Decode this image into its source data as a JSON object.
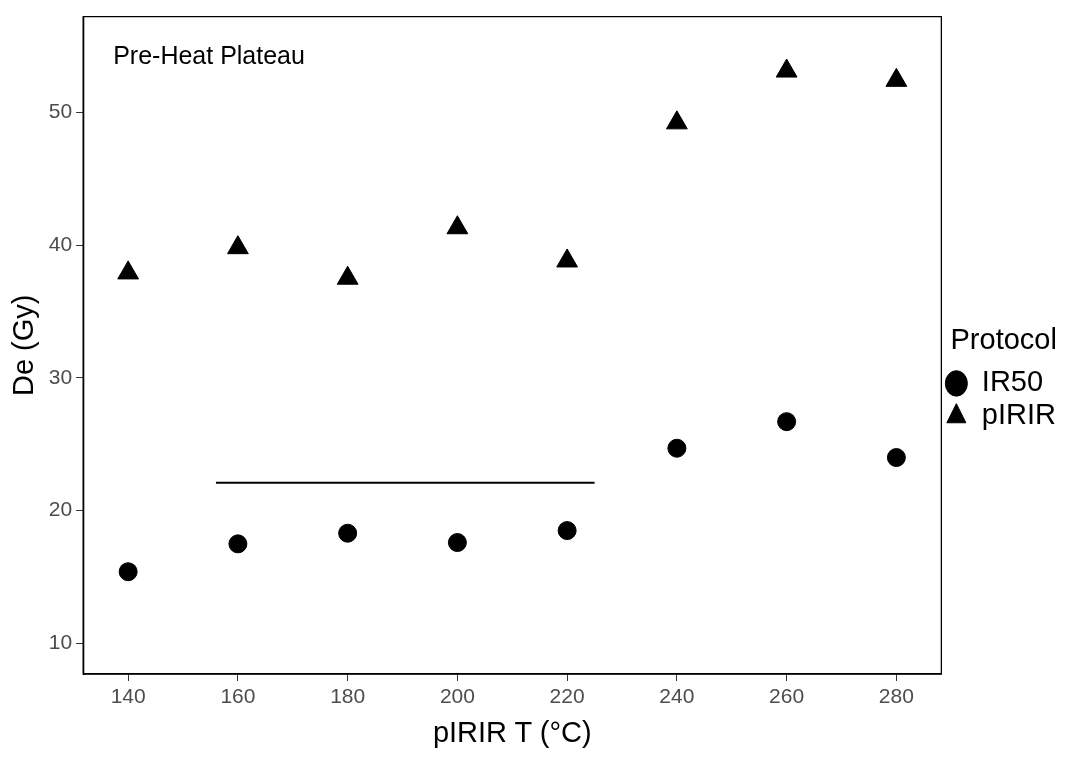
{
  "chart_data": {
    "type": "scatter",
    "xlabel": "pIRIR T (°C)",
    "ylabel": "De (Gy)",
    "legend_title": "Protocol",
    "legend": "right",
    "grid": false,
    "annotations": [
      "Pre-Heat Plateau"
    ],
    "x": [
      140,
      160,
      180,
      200,
      220,
      240,
      260,
      280
    ],
    "xlim": [
      131.8,
      288.2
    ],
    "xticks": [
      140,
      160,
      180,
      200,
      220,
      240,
      260,
      280
    ],
    "ylim": [
      7.7,
      57.2
    ],
    "yticks": [
      10,
      20,
      30,
      40,
      50
    ],
    "series": [
      {
        "name": "IR50",
        "color": "#000000",
        "marker": "circle",
        "values": [
          15.4,
          17.5,
          18.3,
          17.6,
          18.5,
          24.7,
          26.7,
          24.0
        ]
      },
      {
        "name": "pIRIR",
        "color": "#000000",
        "marker": "triangle",
        "values": [
          37.9,
          39.8,
          37.5,
          41.3,
          38.8,
          49.2,
          53.1,
          52.4
        ]
      },
      {
        "type": "line",
        "color": "#000000",
        "marker": "none",
        "x": [
          156,
          225
        ],
        "values": [
          22.1,
          22.1
        ]
      }
    ]
  }
}
